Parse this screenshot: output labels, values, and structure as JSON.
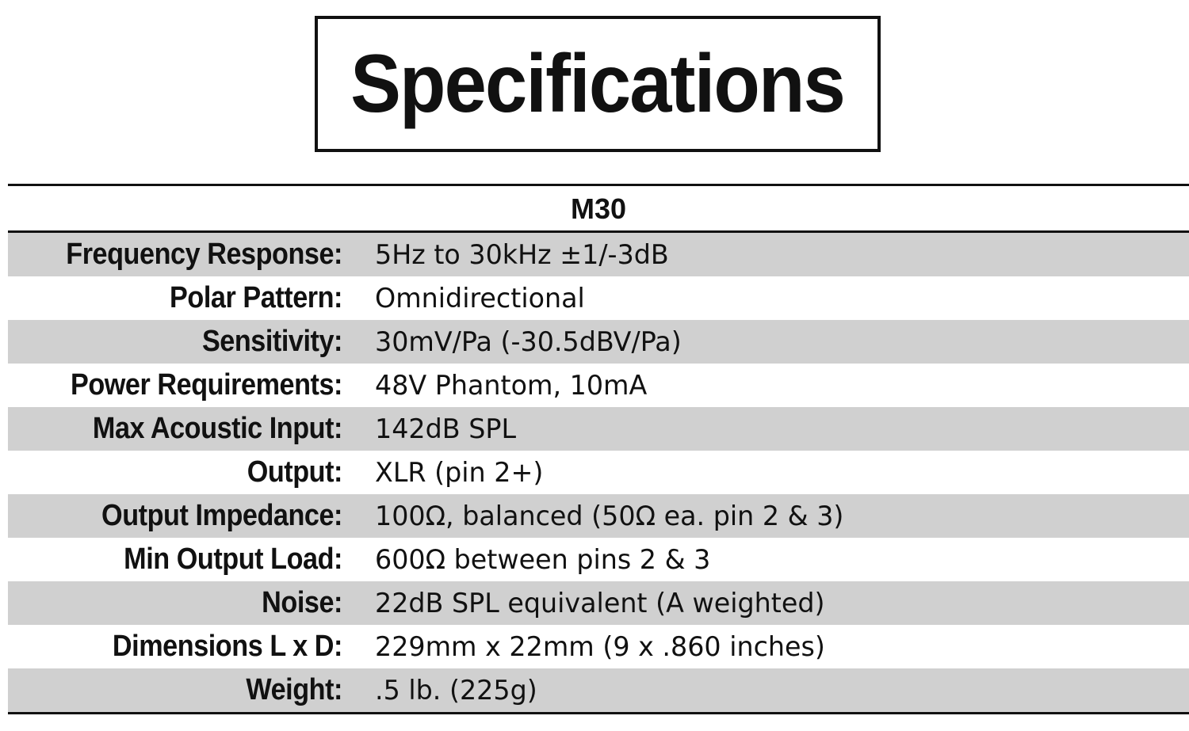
{
  "title": "Specifications",
  "model": "M30",
  "specs": [
    {
      "label": "Frequency Response:",
      "value": "5Hz to 30kHz ±1/-3dB"
    },
    {
      "label": "Polar Pattern:",
      "value": "Omnidirectional"
    },
    {
      "label": "Sensitivity:",
      "value": "30mV/Pa (-30.5dBV/Pa)"
    },
    {
      "label": "Power Requirements:",
      "value": "48V Phantom, 10mA"
    },
    {
      "label": "Max Acoustic Input:",
      "value": "142dB SPL"
    },
    {
      "label": "Output:",
      "value": "XLR (pin 2+)"
    },
    {
      "label": "Output Impedance:",
      "value": "100Ω, balanced (50Ω ea. pin 2 & 3)"
    },
    {
      "label": "Min Output Load:",
      "value": "600Ω between pins 2 & 3"
    },
    {
      "label": "Noise:",
      "value": "22dB SPL equivalent (A weighted)"
    },
    {
      "label": "Dimensions L x D:",
      "value": "229mm x 22mm (9 x .860 inches)"
    },
    {
      "label": "Weight:",
      "value": ".5 lb. (225g)"
    }
  ],
  "colors": {
    "shaded_row": "#d0d0d0",
    "text": "#111111",
    "background": "#ffffff"
  }
}
